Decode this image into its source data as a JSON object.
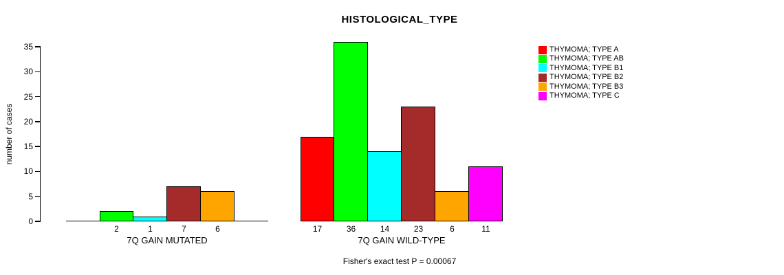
{
  "chart_data": {
    "type": "bar",
    "title": "HISTOLOGICAL_TYPE",
    "ylabel": "number of cases",
    "xlabel": "",
    "ylim": [
      0,
      35
    ],
    "yticks": [
      0,
      5,
      10,
      15,
      20,
      25,
      30,
      35
    ],
    "grid": false,
    "legend_position": "right",
    "series_names": [
      "THYMOMA; TYPE A",
      "THYMOMA; TYPE AB",
      "THYMOMA; TYPE B1",
      "THYMOMA; TYPE B2",
      "THYMOMA; TYPE B3",
      "THYMOMA; TYPE C"
    ],
    "series_colors": [
      "#ff0000",
      "#00ff00",
      "#00ffff",
      "#a52a2a",
      "#ffa500",
      "#ff00ff"
    ],
    "groups": [
      {
        "label": "7Q GAIN MUTATED",
        "values": [
          0,
          2,
          1,
          7,
          6,
          0
        ],
        "bar_labels": [
          "",
          "2",
          "1",
          "7",
          "6",
          ""
        ]
      },
      {
        "label": "7Q GAIN WILD-TYPE",
        "values": [
          17,
          36,
          14,
          23,
          6,
          11
        ],
        "bar_labels": [
          "17",
          "36",
          "14",
          "23",
          "6",
          "11"
        ]
      }
    ],
    "annotation": "Fisher's exact test P = 0.00067"
  }
}
